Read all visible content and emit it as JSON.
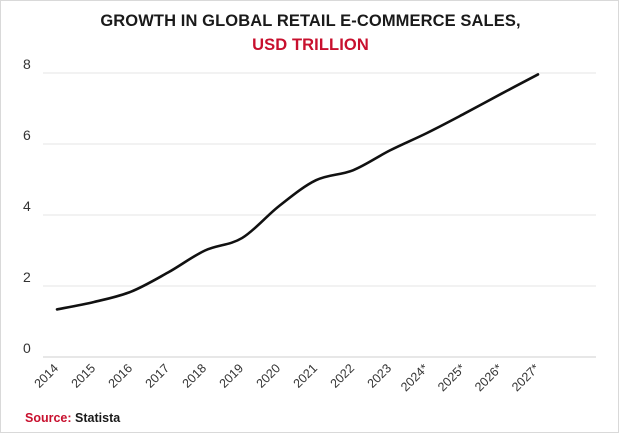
{
  "chart_data": {
    "type": "line",
    "title": "GROWTH IN GLOBAL RETAIL E-COMMERCE SALES,",
    "subtitle": "USD TRILLION",
    "categories": [
      "2014",
      "2015",
      "2016",
      "2017",
      "2018",
      "2019",
      "2020",
      "2021",
      "2022",
      "2023",
      "2024*",
      "2025*",
      "2026*",
      "2027*"
    ],
    "series": [
      {
        "values": [
          1.34,
          1.55,
          1.84,
          2.38,
          3.0,
          3.35,
          4.25,
          4.98,
          5.26,
          5.82,
          6.31,
          6.85,
          7.41,
          7.96
        ]
      }
    ],
    "yticks": [
      0,
      2,
      4,
      6,
      8
    ],
    "ylim": [
      0,
      8
    ],
    "grid": true,
    "legend": "none",
    "colors": {
      "line": "#111111",
      "grid": "#e6e6e6",
      "accent": "#c8102e"
    }
  },
  "source": {
    "label": "Source:",
    "value": "Statista"
  }
}
